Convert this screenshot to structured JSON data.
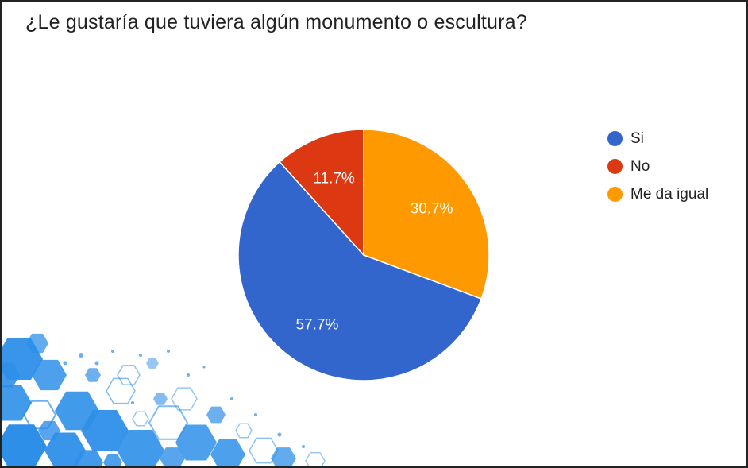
{
  "chart_data": {
    "type": "pie",
    "title": "¿Le gustaría que tuviera algún monumento o escultura?",
    "categories": [
      "Si",
      "No",
      "Me da igual"
    ],
    "values": [
      57.7,
      11.7,
      30.7
    ],
    "value_labels": [
      "57.7%",
      "11.7%",
      "30.7%"
    ],
    "colors": [
      "#3366CC",
      "#DC3912",
      "#FF9900"
    ],
    "legend_position": "right"
  },
  "decoration": {
    "name": "blue-hexagon-pattern",
    "color": "#2e8fe8"
  }
}
